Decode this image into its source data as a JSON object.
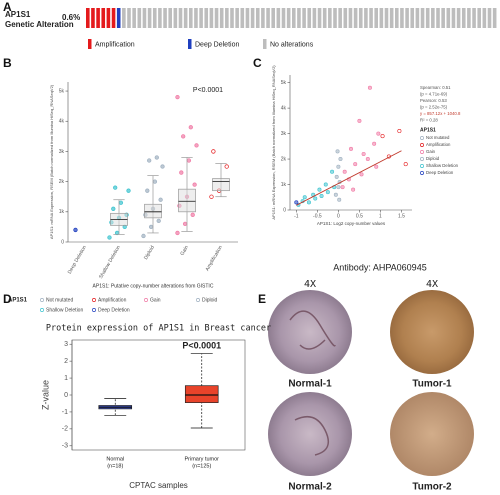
{
  "panel_labels": [
    "A",
    "B",
    "C",
    "D",
    "E"
  ],
  "oncoprint": {
    "gene": "AP1S1",
    "track_label": "Genetic Alteration",
    "altered": "0.6%",
    "legend": [
      {
        "label": "Amplification",
        "color": "#e41a1c"
      },
      {
        "label": "Deep Deletion",
        "color": "#1f3fbf"
      },
      {
        "label": "No alterations",
        "color": "#bdbdbd"
      }
    ]
  },
  "chart_data": [
    {
      "type": "box",
      "y_label": "AP1S1: mRNA Expression, RSEM (Batch normalized from Illumina HiSeq_RNASeqV2)",
      "x_label": "AP1S1: Putative copy-number alterations from GISTIC",
      "annotation": "P<0.0001",
      "categories": [
        "Deep Deletion",
        "Shallow Deletion",
        "Diploid",
        "Gain",
        "Amplification"
      ],
      "colors": [
        "#1f3fbf",
        "#3cc3cf",
        "#9fb0c0",
        "#f07aa5",
        "#e41a1c"
      ],
      "low": [
        null,
        250,
        300,
        350,
        1500
      ],
      "q1": [
        null,
        550,
        800,
        1000,
        1700
      ],
      "median": [
        null,
        750,
        1000,
        1350,
        2000
      ],
      "q3": [
        null,
        950,
        1250,
        1750,
        2100
      ],
      "high": [
        null,
        1400,
        2200,
        2800,
        2600
      ],
      "points": [
        [
          400
        ],
        [
          150,
          300,
          500,
          650,
          800,
          900,
          1100,
          1300,
          1700,
          1800
        ],
        [
          200,
          500,
          700,
          900,
          1100,
          1400,
          1700,
          2000,
          2500,
          2700,
          2800
        ],
        [
          300,
          600,
          900,
          1200,
          1500,
          1900,
          2300,
          2700,
          3200,
          3500,
          3800,
          4800
        ],
        [
          1500,
          1700,
          2500,
          3000
        ]
      ],
      "ylim": [
        0,
        5300
      ],
      "yticks": [
        0,
        {
          "value": 1000,
          "label": "1k"
        },
        {
          "value": 2000,
          "label": "2k"
        },
        {
          "value": 3000,
          "label": "3k"
        },
        {
          "value": 4000,
          "label": "4k"
        },
        {
          "value": 5000,
          "label": "5k"
        }
      ],
      "legend_title": "AP1S1",
      "legend": [
        {
          "label": "Not mutated",
          "color": "#9fb0c0"
        },
        {
          "label": "Amplification",
          "color": "#e41a1c"
        },
        {
          "label": "Gain",
          "color": "#f07aa5"
        },
        {
          "label": "Diploid",
          "color": "#9fb0c0"
        },
        {
          "label": "Shallow Deletion",
          "color": "#3cc3cf"
        },
        {
          "label": "Deep Deletion",
          "color": "#1f3fbf"
        }
      ]
    },
    {
      "type": "scatter",
      "y_label": "AP1S1: mRNA Expression, RSEM (Batch normalized from Illumina HiSeq_RNASeqV2)",
      "x_label": "AP1S1: Log2 copy-number values",
      "xlim": [
        -1.15,
        1.75
      ],
      "xticks": [
        -1,
        -0.5,
        0,
        0.5,
        1,
        1.5
      ],
      "ylim": [
        0,
        5300
      ],
      "yticks": [
        0,
        {
          "value": 1000,
          "label": "1k"
        },
        {
          "value": 2000,
          "label": "2k"
        },
        {
          "value": 3000,
          "label": "3k"
        },
        {
          "value": 4000,
          "label": "4k"
        },
        {
          "value": 5000,
          "label": "5k"
        }
      ],
      "stats": [
        "Spearman: 0.51",
        "(p = 4.71e-69)",
        "Pearson: 0.53",
        "(p = 2.52e-75)",
        "y = 857.12x + 1040.8",
        "R² = 0.28"
      ],
      "legend_title": "AP1S1",
      "series": [
        {
          "name": "Not mutated",
          "color": "#9fb0c0",
          "x": [],
          "values": []
        },
        {
          "name": "Amplification",
          "color": "#e41a1c",
          "x": [
            1.05,
            1.2,
            1.45,
            1.6
          ],
          "values": [
            2900,
            2100,
            3100,
            1800
          ]
        },
        {
          "name": "Gain",
          "color": "#f07aa5",
          "x": [
            0.1,
            0.15,
            0.25,
            0.3,
            0.35,
            0.4,
            0.5,
            0.55,
            0.6,
            0.7,
            0.75,
            0.85,
            0.9,
            0.95
          ],
          "values": [
            900,
            1500,
            1200,
            2400,
            800,
            1800,
            3500,
            1400,
            2200,
            2000,
            4800,
            2600,
            1700,
            3000
          ]
        },
        {
          "name": "Diploid",
          "color": "#9fb0c0",
          "x": [
            -0.06,
            -0.04,
            -0.02,
            0,
            0,
            0.02,
            0.03,
            0.05
          ],
          "values": [
            600,
            1300,
            2300,
            900,
            1700,
            400,
            1100,
            2000
          ]
        },
        {
          "name": "Shallow Deletion",
          "color": "#3cc3cf",
          "x": [
            -0.95,
            -0.85,
            -0.8,
            -0.7,
            -0.6,
            -0.55,
            -0.45,
            -0.4,
            -0.3,
            -0.25,
            -0.15,
            -0.1
          ],
          "values": [
            200,
            350,
            500,
            300,
            600,
            450,
            800,
            550,
            1000,
            700,
            1500,
            900
          ]
        },
        {
          "name": "Deep Deletion",
          "color": "#1f3fbf",
          "x": [
            -1.0
          ],
          "values": [
            300
          ]
        }
      ],
      "trend_line": {
        "x": [
          -1,
          1.5
        ],
        "y": [
          183.68,
          2326.48
        ],
        "color": "#c0392b"
      }
    },
    {
      "type": "box",
      "title": "Protein expression of AP1S1 in Breast cancer",
      "y_label": "Z-value",
      "x_label": "CPTAC samples",
      "annotation": "P<0.0001",
      "categories": [
        "Normal",
        "Primary tumor"
      ],
      "category_notes": [
        "(n=18)",
        "(n=125)"
      ],
      "colors": [
        "#3a4fbf",
        "#e8432a"
      ],
      "low": [
        -1.2,
        -1.95
      ],
      "q1": [
        -0.82,
        -0.45
      ],
      "median": [
        -0.72,
        0
      ],
      "q3": [
        -0.62,
        0.55
      ],
      "high": [
        -0.2,
        2.45
      ],
      "ylim": [
        -3.25,
        3.25
      ],
      "yticks": [
        -3,
        -2,
        -1,
        0,
        1,
        2,
        3
      ]
    }
  ],
  "ihc": {
    "title": "Antibody: AHPA060945",
    "magnifications": [
      "4X",
      "4X"
    ],
    "samples": [
      "Normal-1",
      "Tumor-1",
      "Normal-2",
      "Tumor-2"
    ]
  }
}
